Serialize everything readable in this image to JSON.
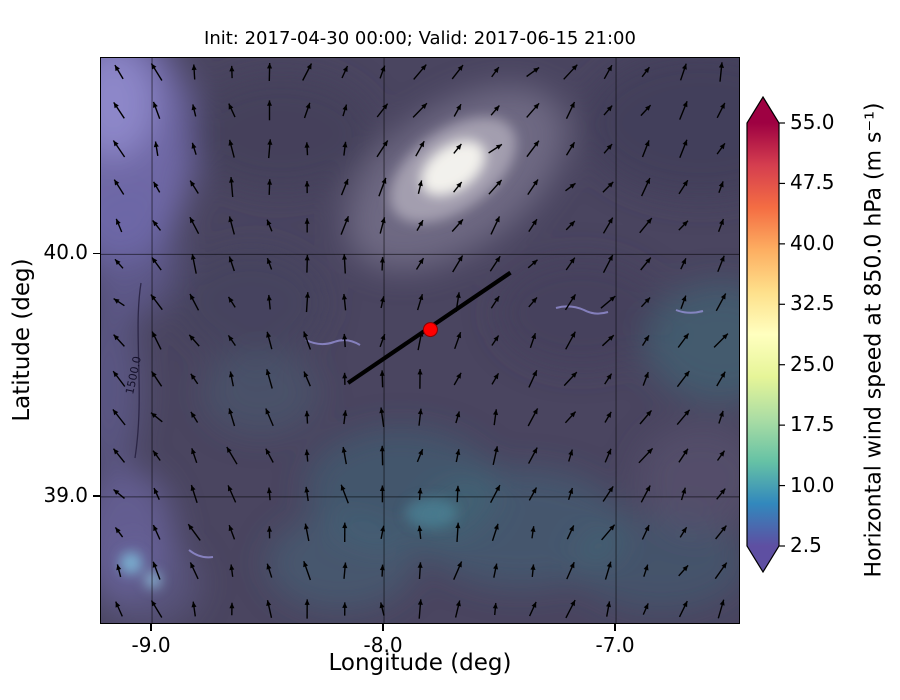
{
  "chart_data": {
    "type": "heatmap",
    "title": "Init: 2017-04-30 00:00; Valid: 2017-06-15 21:00",
    "xlabel": "Longitude (deg)",
    "ylabel": "Latitude (deg)",
    "xlim": [
      -9.22,
      -6.47
    ],
    "ylim": [
      38.48,
      40.81
    ],
    "xticks": [
      -9.0,
      -8.0,
      -7.0
    ],
    "xtick_labels": [
      "-9.0",
      "-8.0",
      "-7.0"
    ],
    "yticks": [
      40.0,
      39.0
    ],
    "ytick_labels": [
      "40.0",
      "39.0"
    ],
    "grid": true,
    "colorbar": {
      "label": "Horizontal wind speed at 850.0 hPa (m s⁻¹)",
      "ticks": [
        2.5,
        10.0,
        17.5,
        25.0,
        32.5,
        40.0,
        47.5,
        55.0
      ],
      "vmin": 2.5,
      "vmax": 55.0,
      "extend": "both",
      "colormap": "Spectral_r",
      "colors": [
        "#5e4fa2",
        "#3288bd",
        "#66c2a5",
        "#abdda4",
        "#e6f598",
        "#ffffbf",
        "#fee08b",
        "#fdae61",
        "#f46d43",
        "#d53e4f",
        "#9e0142"
      ]
    },
    "contour_label": "1500.0",
    "cross_section_line": {
      "start_lonlat": [
        -8.155,
        39.47
      ],
      "end_lonlat": [
        -7.455,
        39.925
      ]
    },
    "marker": {
      "lonlat": [
        -7.8,
        39.69
      ],
      "color": "#ff0000"
    },
    "quiver": {
      "rows": 15,
      "cols": 17,
      "coarse_angles_deg": [
        [
          115,
          95,
          60,
          45,
          55,
          70
        ],
        [
          125,
          105,
          75,
          50,
          50,
          65
        ],
        [
          135,
          115,
          90,
          65,
          50,
          60
        ],
        [
          130,
          110,
          95,
          75,
          60,
          55
        ],
        [
          115,
          100,
          90,
          80,
          70,
          60
        ]
      ]
    },
    "field_summary": "Wind speed mostly 2.5-10 m/s (dark purple) with teal patches ~10-15 m/s and a bright maximum ~25 m/s near 40.3N -7.8E; lighter purple-blue band along the western (coastal) edge"
  }
}
